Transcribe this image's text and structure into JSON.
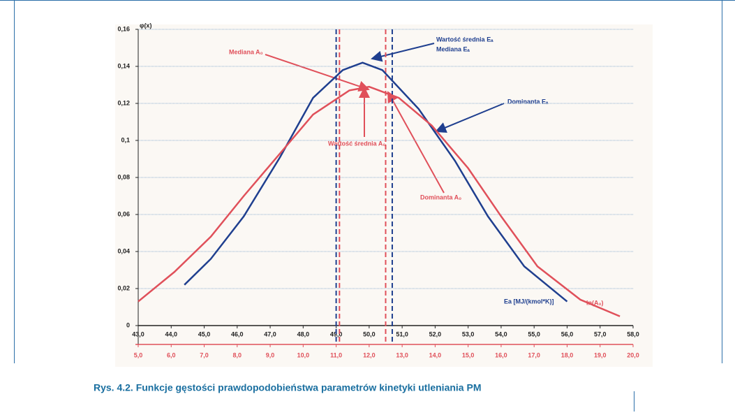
{
  "chart_data": {
    "type": "line",
    "caption": "Rys. 4.2. Funkcje gęstości prawdopodobieństwa parametrów kinetyki utleniania PM",
    "ylabel": "φ(x)",
    "xlabel": "Ea [MJ/(kmol*K)]",
    "x2label": "ln(A₀)",
    "ylim": [
      0,
      0.16
    ],
    "yticks": [
      0,
      {
        "value": 0.02,
        "label": "0,02"
      },
      {
        "value": 0.04,
        "label": "0,04"
      },
      {
        "value": 0.06,
        "label": "0,06"
      },
      {
        "value": 0.08,
        "label": "0,08"
      },
      {
        "value": 0.1,
        "label": "0,1"
      },
      {
        "value": 0.12,
        "label": "0,12"
      },
      {
        "value": 0.14,
        "label": "0,14"
      },
      {
        "value": 0.16,
        "label": "0,16"
      }
    ],
    "xlim": [
      43,
      58
    ],
    "xticks": [
      {
        "value": 43,
        "label": "43,0"
      },
      {
        "value": 44,
        "label": "44,0"
      },
      {
        "value": 45,
        "label": "45,0"
      },
      {
        "value": 46,
        "label": "46,0"
      },
      {
        "value": 47,
        "label": "47,0"
      },
      {
        "value": 48,
        "label": "48,0"
      },
      {
        "value": 49,
        "label": "49,0"
      },
      {
        "value": 50,
        "label": "50,0"
      },
      {
        "value": 51,
        "label": "51,0"
      },
      {
        "value": 52,
        "label": "52,0"
      },
      {
        "value": 53,
        "label": "53,0"
      },
      {
        "value": 54,
        "label": "54,0"
      },
      {
        "value": 55,
        "label": "55,0"
      },
      {
        "value": 56,
        "label": "56,0"
      },
      {
        "value": 57,
        "label": "57,0"
      },
      {
        "value": 58,
        "label": "58,0"
      }
    ],
    "x2lim": [
      5,
      20
    ],
    "x2ticks": [
      {
        "value": 5,
        "label": "5,0"
      },
      {
        "value": 6,
        "label": "6,0"
      },
      {
        "value": 7,
        "label": "7,0"
      },
      {
        "value": 8,
        "label": "8,0"
      },
      {
        "value": 9,
        "label": "9,0"
      },
      {
        "value": 10,
        "label": "10,0"
      },
      {
        "value": 11,
        "label": "11,0"
      },
      {
        "value": 12,
        "label": "12,0"
      },
      {
        "value": 13,
        "label": "13,0"
      },
      {
        "value": 14,
        "label": "14,0"
      },
      {
        "value": 15,
        "label": "15,0"
      },
      {
        "value": 16,
        "label": "16,0"
      },
      {
        "value": 17,
        "label": "17,0"
      },
      {
        "value": 18,
        "label": "18,0"
      },
      {
        "value": 19,
        "label": "19,0"
      },
      {
        "value": 20,
        "label": "20,0"
      }
    ],
    "grid": true,
    "series": [
      {
        "name": "Ea",
        "color": "#1f3f8f",
        "axis": "x",
        "x": [
          44.4,
          45.2,
          46.2,
          47.3,
          48.3,
          49.2,
          49.8,
          50.4,
          51.5,
          52.6,
          53.6,
          54.7,
          56.0
        ],
        "values": [
          0.022,
          0.036,
          0.059,
          0.091,
          0.123,
          0.138,
          0.142,
          0.138,
          0.117,
          0.089,
          0.059,
          0.032,
          0.013
        ]
      },
      {
        "name": "A0",
        "color": "#e0505a",
        "axis": "x2",
        "x": [
          5.0,
          6.1,
          7.2,
          8.2,
          9.3,
          10.3,
          11.4,
          12.0,
          12.9,
          13.9,
          15.0,
          16.0,
          17.1,
          18.4,
          19.6
        ],
        "values": [
          0.013,
          0.029,
          0.048,
          0.07,
          0.093,
          0.114,
          0.127,
          0.129,
          0.123,
          0.108,
          0.085,
          0.059,
          0.032,
          0.014,
          0.005
        ]
      }
    ],
    "vlines": [
      {
        "axis": "x",
        "color": "#1f3f8f",
        "value": 49.0
      },
      {
        "axis": "x",
        "color": "#1f3f8f",
        "value": 50.7
      },
      {
        "axis": "x2",
        "color": "#e0505a",
        "value": 11.1
      },
      {
        "axis": "x2",
        "color": "#e0505a",
        "value": 12.5
      }
    ],
    "annotations": [
      "Wartość średnia Eₐ",
      "Mediana Eₐ",
      "Dominanta Eₐ",
      "Mediana A₀",
      "Wartość średnia A₀",
      "Dominanta A₀"
    ]
  }
}
